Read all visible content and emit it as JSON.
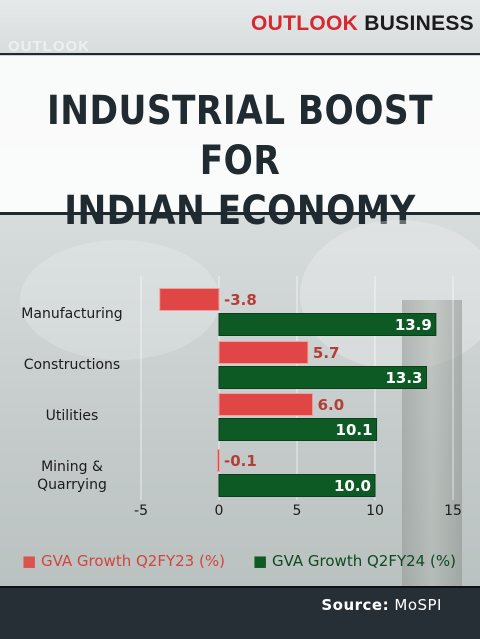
{
  "brand": {
    "part1": "OUTLOOK",
    "part2": "BUSINESS"
  },
  "ghost_text": "OUTLOOK",
  "title_lines": [
    "INDUSTRIAL BOOST FOR",
    "INDIAN ECONOMY"
  ],
  "chart_data": {
    "type": "bar",
    "orientation": "horizontal",
    "categories": [
      "Manufacturing",
      "Constructions",
      "Utilities",
      "Mining & Quarrying"
    ],
    "category_lines": [
      [
        "Manufacturing"
      ],
      [
        "Constructions"
      ],
      [
        "Utilities"
      ],
      [
        "Mining &",
        "Quarrying"
      ]
    ],
    "series": [
      {
        "name": "GVA Growth Q2FY23 (%)",
        "values": [
          -3.8,
          5.7,
          6.0,
          -0.1
        ],
        "labels": [
          "-3.8",
          "5.7",
          "6.0",
          "-0.1"
        ],
        "color": "#e04646",
        "label_color": "#b23f36"
      },
      {
        "name": "GVA Growth Q2FY24 (%)",
        "values": [
          13.9,
          13.3,
          10.1,
          10.0
        ],
        "labels": [
          "13.9",
          "13.3",
          "10.1",
          "10.0"
        ],
        "color": "#0d5a24",
        "label_color": "#ffffff"
      }
    ],
    "xlim": [
      -5,
      15
    ],
    "xticks": [
      -5,
      0,
      5,
      10,
      15
    ],
    "xtick_labels": [
      "-5",
      "0",
      "5",
      "10",
      "15"
    ],
    "grid": true,
    "legend_position": "bottom"
  },
  "legend": {
    "q23": {
      "symbol": "■",
      "label": "GVA Growth Q2FY23 (%)",
      "color": "#d9534f"
    },
    "q24": {
      "symbol": "■",
      "label": "GVA Growth Q2FY24 (%)",
      "color": "#0d5a24"
    }
  },
  "source": {
    "key": "Source:",
    "value": "MoSPI"
  }
}
